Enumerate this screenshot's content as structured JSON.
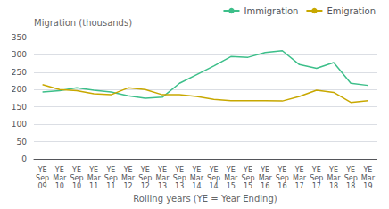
{
  "chart_data": {
    "type": "line",
    "ylabel": "Migration (thousands)",
    "xlabel": "Rolling years (YE = Year Ending)",
    "categories": [
      "YE\nSep\n09",
      "YE\nMar\n10",
      "YE\nSep\n10",
      "YE\nMar\n11",
      "YE\nSep\n11",
      "YE\nMar\n12",
      "YE\nSep\n12",
      "YE\nMar\n13",
      "YE\nSep\n13",
      "YE\nMar\n14",
      "YE\nSep\n14",
      "YE\nMar\n15",
      "YE\nSep\n15",
      "YE\nMar\n16",
      "YE\nSep\n16",
      "YE\nMar\n17",
      "YE\nSep\n17",
      "YE\nMar\n18",
      "YE\nSep\n18",
      "YE\nMar\n19"
    ],
    "series": [
      {
        "name": "Immigration",
        "color": "#3dbf8a",
        "values": [
          193,
          197,
          205,
          198,
          193,
          182,
          175,
          178,
          218,
          243,
          268,
          295,
          293,
          307,
          312,
          272,
          261,
          278,
          218,
          212
        ]
      },
      {
        "name": "Emigration",
        "color": "#c8a800",
        "values": [
          214,
          200,
          197,
          188,
          185,
          205,
          200,
          185,
          185,
          180,
          172,
          168,
          168,
          168,
          167,
          180,
          198,
          192,
          163,
          168
        ]
      }
    ],
    "ylim": [
      0,
      350
    ],
    "yticks": [
      0,
      50,
      100,
      150,
      200,
      250,
      300,
      350
    ],
    "grid": true,
    "legend": "upper right"
  }
}
